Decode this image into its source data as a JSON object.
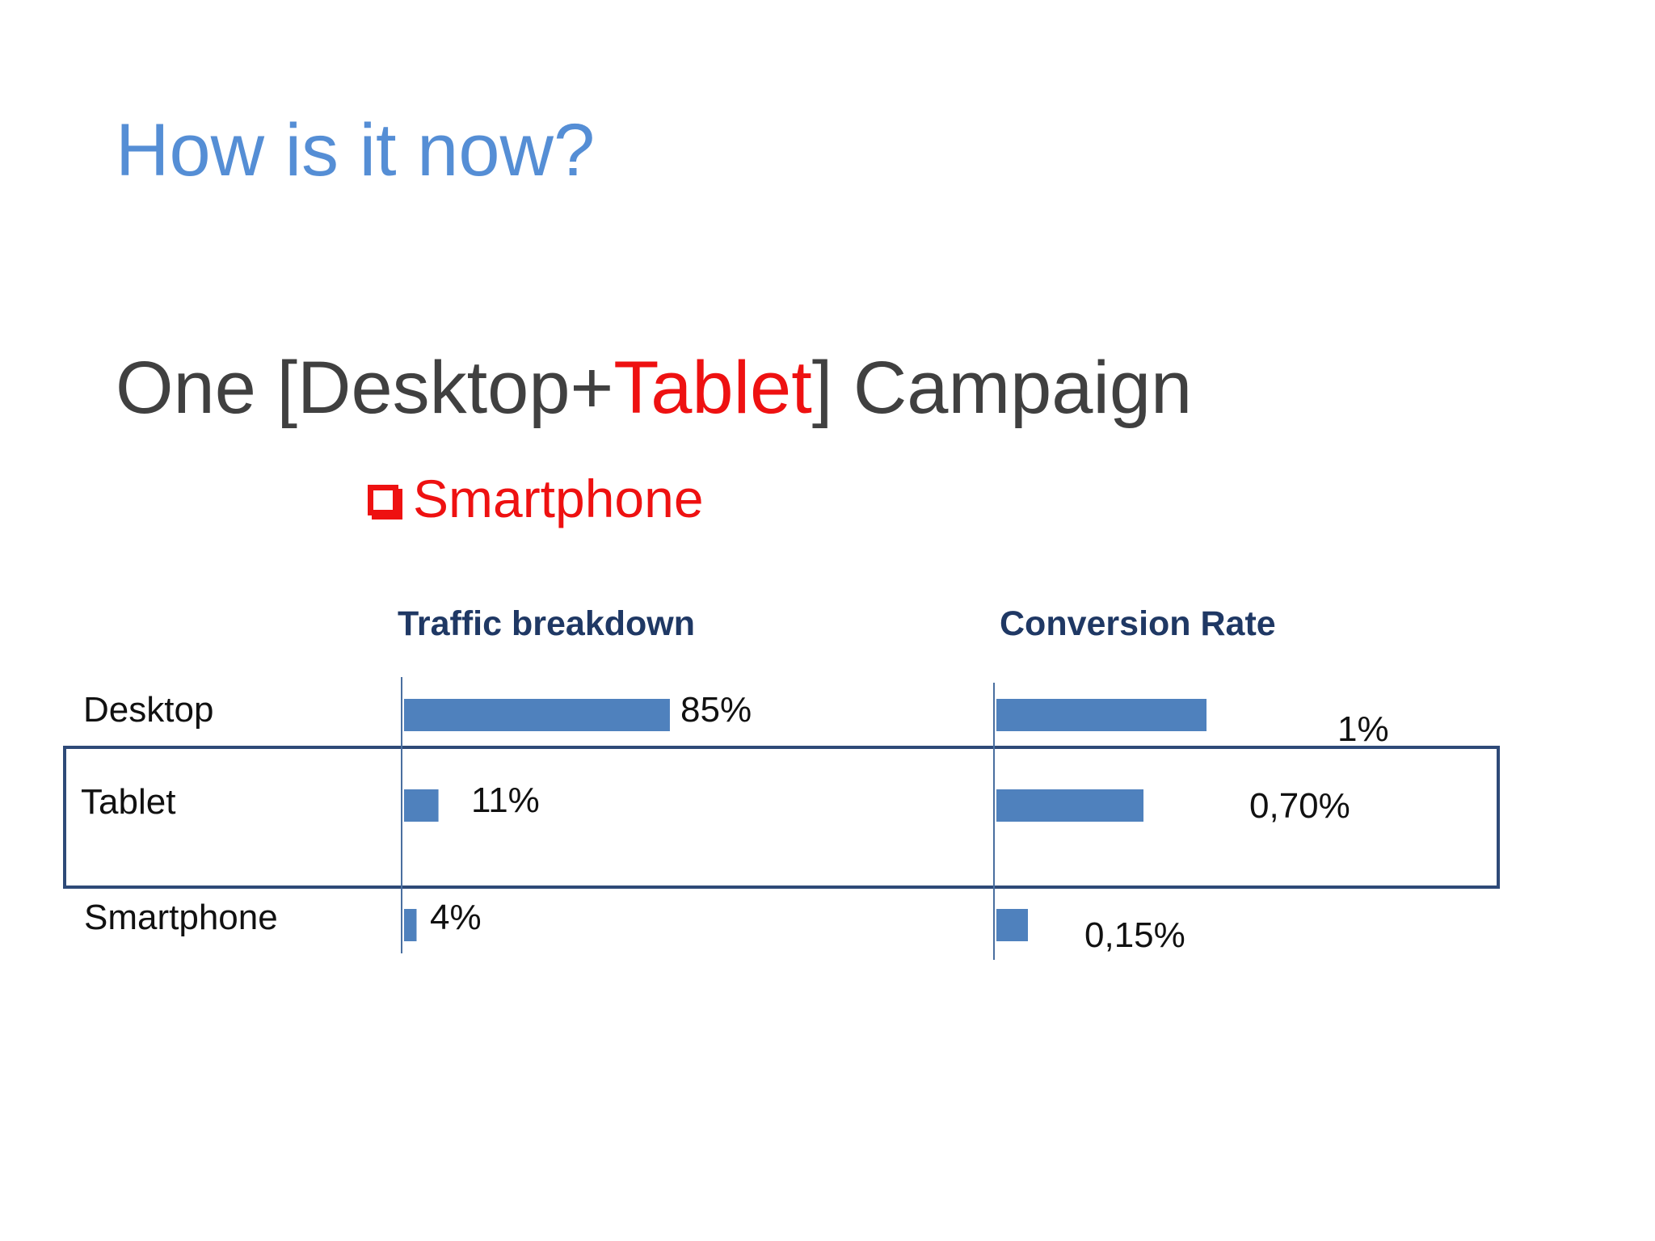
{
  "slide": {
    "title": "How is it now?",
    "subtitle_pre": "One [Desktop+",
    "subtitle_highlight": "Tablet",
    "subtitle_post": "] Campaign",
    "bullet_icon": "checkbox-icon",
    "bullet_text": "Smartphone"
  },
  "colors": {
    "title": "#558ed5",
    "subtitle": "#404040",
    "highlight": "#ee1111",
    "bar": "#4f81bd",
    "panel_title": "#1f3864",
    "frame": "#2e4a78"
  },
  "chart_data": [
    {
      "type": "bar",
      "orientation": "horizontal",
      "title": "Traffic breakdown",
      "categories": [
        "Desktop",
        "Tablet",
        "Smartphone"
      ],
      "values": [
        85,
        11,
        4
      ],
      "labels": [
        "85%",
        "11%",
        "4%"
      ],
      "xlim": [
        0,
        100
      ]
    },
    {
      "type": "bar",
      "orientation": "horizontal",
      "title": "Conversion Rate",
      "categories": [
        "Desktop",
        "Tablet",
        "Smartphone"
      ],
      "values": [
        1,
        0.7,
        0.15
      ],
      "labels": [
        "1%",
        "0,70%",
        "0,15%"
      ],
      "xlim": [
        0,
        1.25
      ]
    }
  ]
}
